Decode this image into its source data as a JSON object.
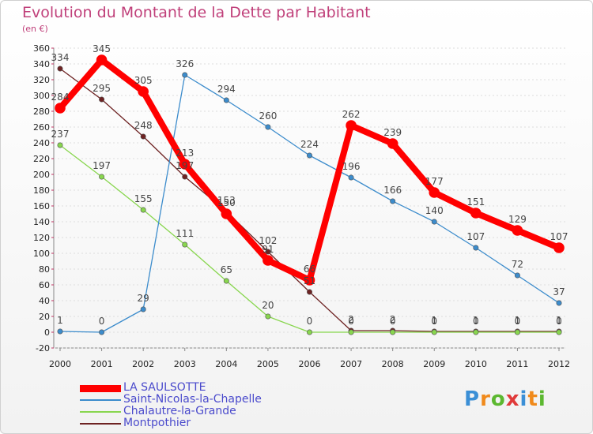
{
  "chart_data": {
    "type": "line",
    "title": "Evolution du Montant de la Dette par Habitant",
    "ylabel": "(en €)",
    "x": [
      "2000",
      "2001",
      "2002",
      "2003",
      "2004",
      "2005",
      "2006",
      "2007",
      "2008",
      "2009",
      "2010",
      "2011",
      "2012"
    ],
    "ylim": [
      -20,
      360
    ],
    "yticks": [
      -20,
      0,
      20,
      40,
      60,
      80,
      100,
      120,
      140,
      160,
      180,
      200,
      220,
      240,
      260,
      280,
      300,
      320,
      340,
      360
    ],
    "series": [
      {
        "name": "Montpothier",
        "color": "#6e2323",
        "values": [
          334,
          295,
          248,
          197,
          153,
          102,
          51,
          2,
          2,
          1,
          1,
          1,
          1
        ],
        "labels": [
          "334",
          "295",
          "248",
          "197",
          "153",
          "102",
          "51",
          "2",
          "2",
          "1",
          "1",
          "1",
          "1"
        ]
      },
      {
        "name": "Chalautre-la-Grande",
        "color": "#88d64e",
        "values": [
          237,
          197,
          155,
          111,
          65,
          20,
          0,
          0,
          0,
          0,
          0,
          0,
          0
        ],
        "labels": [
          "237",
          "197",
          "155",
          "111",
          "65",
          "20",
          "0",
          "0",
          "0",
          "0",
          "0",
          "0",
          "0"
        ]
      },
      {
        "name": "Saint-Nicolas-la-Chapelle",
        "color": "#3c8ccc",
        "values": [
          1,
          0,
          29,
          326,
          294,
          260,
          224,
          196,
          166,
          140,
          107,
          72,
          37
        ],
        "labels": [
          "1",
          "0",
          "29",
          "326",
          "294",
          "260",
          "224",
          "196",
          "166",
          "140",
          "107",
          "72",
          "37"
        ]
      },
      {
        "name": "LA SAULSOTTE",
        "color": "#ff0000",
        "values": [
          284,
          345,
          305,
          213,
          150,
          91,
          66,
          262,
          239,
          177,
          151,
          129,
          107
        ],
        "labels": [
          "284",
          "345",
          "305",
          "213",
          "150",
          "91",
          "66",
          "262",
          "239",
          "177",
          "151",
          "129",
          "107"
        ]
      }
    ],
    "legend": [
      "LA SAULSOTTE",
      "Saint-Nicolas-la-Chapelle",
      "Chalautre-la-Grande",
      "Montpothier"
    ]
  },
  "brand": {
    "letters": [
      "P",
      "r",
      "o",
      "x",
      "i",
      "t",
      "i"
    ],
    "colors": [
      "#3b8fd6",
      "#f08a1c",
      "#5cb830",
      "#e03a3a",
      "#3b8fd6",
      "#f08a1c",
      "#5cb830"
    ]
  }
}
